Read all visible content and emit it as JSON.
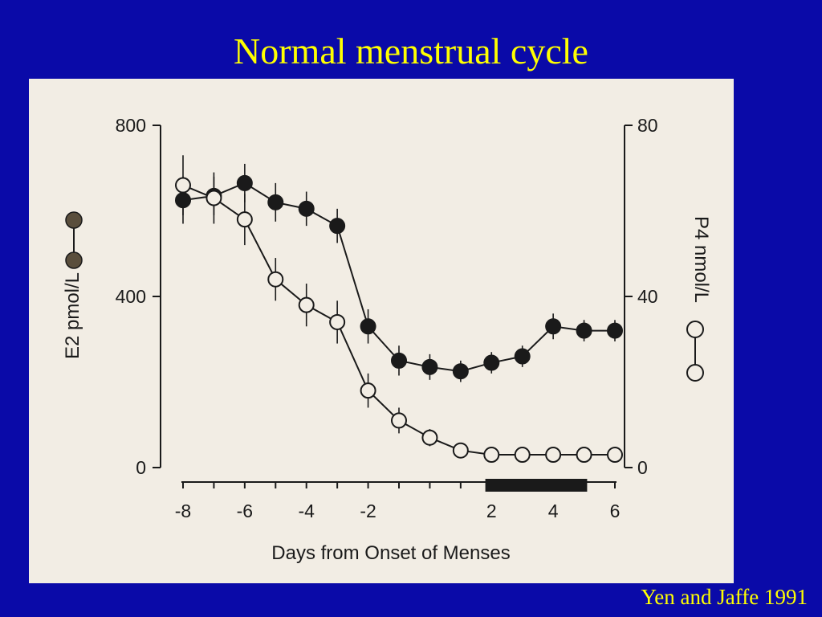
{
  "slide": {
    "title": "Normal menstrual cycle",
    "citation": "Yen and Jaffe 1991"
  },
  "chart_data": {
    "type": "line",
    "title": "",
    "xlabel": "Days from Onset of Menses",
    "ylabel_left": "E2 pmol/L",
    "ylabel_right": "P4 nmol/L",
    "x_ticks": [
      -8,
      -6,
      -4,
      -2,
      2,
      4,
      6
    ],
    "x_tick_labels": [
      "-8",
      "-6",
      "-4",
      "-2",
      "2",
      "4",
      "6"
    ],
    "xlim": [
      -8,
      6
    ],
    "ylim_left": [
      0,
      800
    ],
    "ylim_right": [
      0,
      80
    ],
    "left_ticks": [
      0,
      400,
      800
    ],
    "left_tick_labels": [
      "0",
      "400",
      "800"
    ],
    "right_ticks": [
      0,
      40,
      80
    ],
    "right_tick_labels": [
      "0",
      "40",
      "80"
    ],
    "menses_bar": [
      1.8,
      5.1
    ],
    "series": [
      {
        "name": "E2",
        "marker": "filled",
        "axis": "left",
        "x": [
          -8,
          -7,
          -6,
          -5,
          -4,
          -3,
          -2,
          -1,
          0,
          1,
          2,
          3,
          4,
          5,
          6
        ],
        "y": [
          625,
          635,
          665,
          620,
          605,
          565,
          330,
          250,
          235,
          225,
          245,
          260,
          330,
          320,
          320
        ],
        "err": [
          55,
          45,
          45,
          45,
          40,
          40,
          40,
          35,
          30,
          25,
          25,
          25,
          30,
          25,
          25
        ]
      },
      {
        "name": "P4",
        "marker": "open",
        "axis": "right",
        "x": [
          -8,
          -7,
          -6,
          -5,
          -4,
          -3,
          -2,
          -1,
          0,
          1,
          2,
          3,
          4,
          5,
          6
        ],
        "y": [
          66,
          63,
          58,
          44,
          38,
          34,
          18,
          11,
          7,
          4,
          3,
          3,
          3,
          3,
          3
        ],
        "err": [
          7,
          6,
          6,
          5,
          5,
          5,
          4,
          3,
          2,
          1,
          1,
          1,
          1,
          1,
          1
        ]
      }
    ]
  }
}
